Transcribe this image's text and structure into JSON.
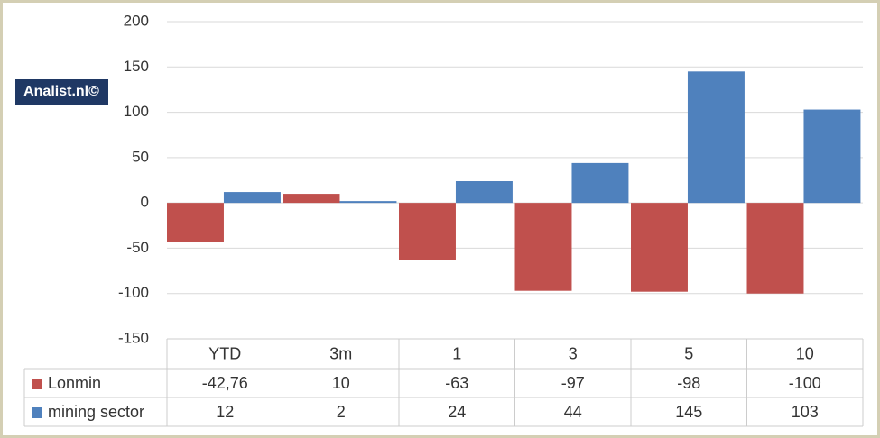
{
  "chart_data": {
    "type": "bar",
    "watermark": "Analist.nl©",
    "categories": [
      "YTD",
      "3m",
      "1",
      "3",
      "5",
      "10"
    ],
    "series": [
      {
        "name": "Lonmin",
        "color": "#c0504d",
        "values": [
          -42.76,
          10,
          -63,
          -97,
          -98,
          -100
        ],
        "value_labels": [
          "-42,76",
          "10",
          "-63",
          "-97",
          "-98",
          "-100"
        ]
      },
      {
        "name": "mining sector",
        "color": "#4f81bd",
        "values": [
          12,
          2,
          24,
          44,
          145,
          103
        ]
      }
    ],
    "ylim": [
      -150,
      200
    ],
    "yticks": [
      -150,
      -100,
      -50,
      0,
      50,
      100,
      150,
      200
    ],
    "grid": true
  }
}
